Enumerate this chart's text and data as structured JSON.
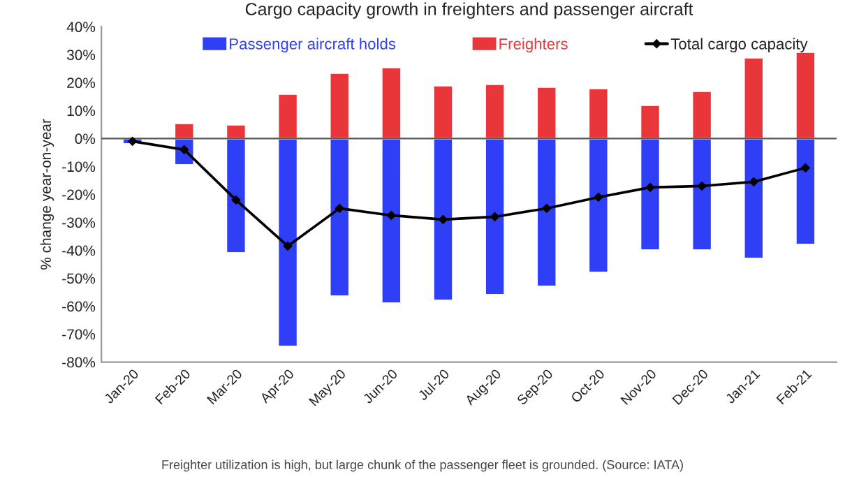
{
  "chart_data": {
    "type": "bar",
    "title": "Cargo capacity growth in freighters and passenger aircraft",
    "ylabel": "% change year-on-year",
    "categories": [
      "Jan-20",
      "Feb-20",
      "Mar-20",
      "Apr-20",
      "May-20",
      "Jun-20",
      "Jul-20",
      "Aug-20",
      "Sep-20",
      "Oct-20",
      "Nov-20",
      "Dec-20",
      "Jan-21",
      "Feb-21"
    ],
    "series": [
      {
        "name": "Passenger aircraft holds",
        "color": "#2f3ff5",
        "values": [
          -2,
          -9.5,
          -41,
          -74.5,
          -56.5,
          -59,
          -58,
          -56,
          -53,
          -48,
          -40,
          -40,
          -43,
          -38
        ]
      },
      {
        "name": "Freighters",
        "color": "#e8363a",
        "values": [
          null,
          5.5,
          5,
          16,
          23.5,
          25.5,
          19,
          19.5,
          18.5,
          18,
          12,
          17,
          29,
          31
        ]
      },
      {
        "name": "Total cargo capacity",
        "type": "line",
        "color": "#000000",
        "marker": "diamond",
        "values": [
          -1,
          -4,
          -22,
          -38.5,
          -25,
          -27.5,
          -29,
          -28,
          -25,
          -21,
          -17.5,
          -17,
          -15.5,
          -10.5
        ]
      }
    ],
    "ylim": [
      -80,
      40
    ],
    "yticks": [
      {
        "value": -80,
        "label": "-80%"
      },
      {
        "value": -70,
        "label": "-70%"
      },
      {
        "value": -60,
        "label": "-60%"
      },
      {
        "value": -50,
        "label": "-50%"
      },
      {
        "value": -40,
        "label": "-40%"
      },
      {
        "value": -30,
        "label": "-30%"
      },
      {
        "value": -20,
        "label": "-20%"
      },
      {
        "value": -10,
        "label": "-10%"
      },
      {
        "value": 0,
        "label": "0%"
      },
      {
        "value": 10,
        "label": "10%"
      },
      {
        "value": 20,
        "label": "20%"
      },
      {
        "value": 30,
        "label": "30%"
      },
      {
        "value": 40,
        "label": "40%"
      }
    ],
    "ref_lines": [
      {
        "axis": "y",
        "value": 0,
        "color": "#555555"
      }
    ],
    "legend": "top",
    "stacked": true,
    "grid": false,
    "annotations": [
      "Freighter utilization is high, but large chunk of the passenger fleet is grounded. (Source: IATA)"
    ]
  }
}
